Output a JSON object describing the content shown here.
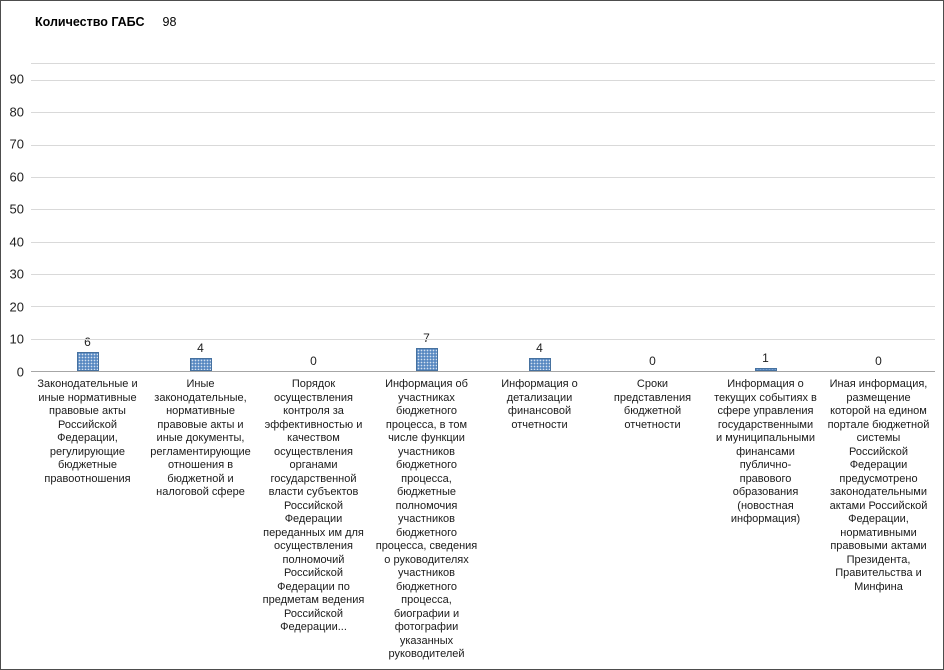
{
  "header": {
    "title": "Количество ГАБС",
    "total": "98"
  },
  "chart_data": {
    "type": "bar",
    "title": "Количество ГАБС",
    "total_label": "98",
    "categories": [
      "Законодательные и иные нормативные правовые акты Российской Федерации, регулирующие бюджетные правоотношения",
      "Иные законодательные, нормативные правовые акты и иные документы, регламентирующие отношения в бюджетной и налоговой сфере",
      "Порядок осуществления контроля за эффективностью и качеством осуществления органами государственной власти субъектов Российской Федерации переданных им для осуществления полномочий Российской Федерации по предметам ведения Российской Федерации...",
      "Информация об участниках бюджетного процесса, в том числе функции участников бюджетного процесса, бюджетные полномочия участников бюджетного процесса, сведения о руководителях участников бюджетного процесса, биографии и фотографии указанных руководителей",
      "Информация о детализации финансовой отчетности",
      "Сроки представления бюджетной отчетности",
      "Информация о текущих событиях в сфере управления государственными и муниципальными финансами публично-правового образования (новостная информация)",
      "Иная информация, размещение которой на едином портале бюджетной системы Российской Федерации предусмотрено законодательными актами Российской Федерации, нормативными правовыми актами Президента, Правительства и Минфина"
    ],
    "values": [
      6,
      4,
      0,
      7,
      4,
      0,
      1,
      0
    ],
    "xlabel": "",
    "ylabel": "",
    "ylim": [
      0,
      95
    ],
    "yticks": [
      0,
      10,
      20,
      30,
      40,
      50,
      60,
      70,
      80,
      90
    ],
    "grid": true,
    "legend": "none",
    "bar_color": "#5a8ac2",
    "gridline_color": "#d9d9d9"
  }
}
